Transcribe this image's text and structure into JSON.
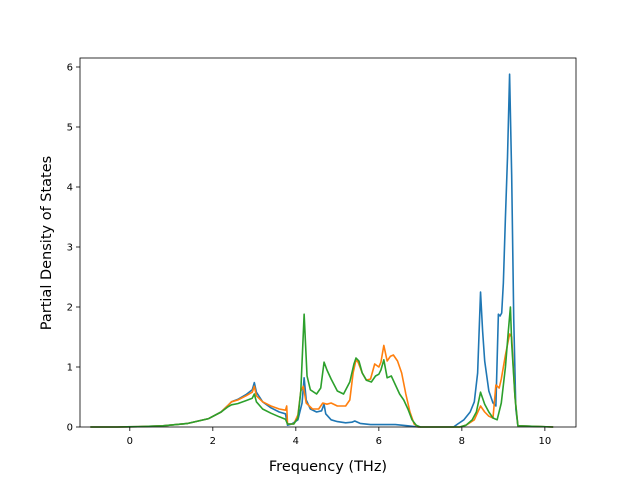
{
  "chart_data": {
    "type": "line",
    "title": "",
    "xlabel": "Frequency (THz)",
    "ylabel": "Partial Density of States",
    "xlim": [
      -1.2,
      10.75
    ],
    "ylim": [
      0,
      6.15
    ],
    "xticks": [
      0,
      2,
      4,
      6,
      8,
      10
    ],
    "yticks": [
      0,
      1,
      2,
      3,
      4,
      5,
      6
    ],
    "grid": false,
    "legend": "none",
    "series": [
      {
        "color": "#1f77b4",
        "points": [
          [
            -0.95,
            0
          ],
          [
            -0.3,
            0
          ],
          [
            0.2,
            0.005
          ],
          [
            0.8,
            0.02
          ],
          [
            1.4,
            0.06
          ],
          [
            1.9,
            0.14
          ],
          [
            2.2,
            0.25
          ],
          [
            2.35,
            0.35
          ],
          [
            2.45,
            0.42
          ],
          [
            2.6,
            0.46
          ],
          [
            2.8,
            0.54
          ],
          [
            2.95,
            0.62
          ],
          [
            3.0,
            0.74
          ],
          [
            3.05,
            0.58
          ],
          [
            3.2,
            0.42
          ],
          [
            3.4,
            0.32
          ],
          [
            3.6,
            0.25
          ],
          [
            3.75,
            0.22
          ],
          [
            3.8,
            0.03
          ],
          [
            3.9,
            0.05
          ],
          [
            4.05,
            0.12
          ],
          [
            4.15,
            0.4
          ],
          [
            4.2,
            0.82
          ],
          [
            4.25,
            0.45
          ],
          [
            4.35,
            0.3
          ],
          [
            4.5,
            0.25
          ],
          [
            4.62,
            0.27
          ],
          [
            4.68,
            0.38
          ],
          [
            4.72,
            0.22
          ],
          [
            4.85,
            0.12
          ],
          [
            5.0,
            0.09
          ],
          [
            5.2,
            0.07
          ],
          [
            5.35,
            0.08
          ],
          [
            5.42,
            0.1
          ],
          [
            5.55,
            0.06
          ],
          [
            5.8,
            0.04
          ],
          [
            6.1,
            0.04
          ],
          [
            6.4,
            0.04
          ],
          [
            6.7,
            0.02
          ],
          [
            6.95,
            0
          ],
          [
            7.8,
            0
          ],
          [
            7.9,
            0.05
          ],
          [
            8.05,
            0.12
          ],
          [
            8.2,
            0.25
          ],
          [
            8.3,
            0.42
          ],
          [
            8.38,
            0.9
          ],
          [
            8.45,
            2.25
          ],
          [
            8.5,
            1.6
          ],
          [
            8.55,
            1.1
          ],
          [
            8.65,
            0.6
          ],
          [
            8.75,
            0.4
          ],
          [
            8.82,
            0.35
          ],
          [
            8.88,
            1.88
          ],
          [
            8.92,
            1.85
          ],
          [
            8.96,
            1.9
          ],
          [
            9.0,
            2.4
          ],
          [
            9.05,
            3.5
          ],
          [
            9.1,
            4.5
          ],
          [
            9.15,
            5.88
          ],
          [
            9.2,
            4.2
          ],
          [
            9.25,
            1.8
          ],
          [
            9.3,
            0.3
          ],
          [
            9.35,
            0.02
          ],
          [
            10.2,
            0
          ]
        ]
      },
      {
        "color": "#ff7f0e",
        "points": [
          [
            -0.95,
            0
          ],
          [
            -0.3,
            0
          ],
          [
            0.2,
            0.005
          ],
          [
            0.8,
            0.02
          ],
          [
            1.4,
            0.06
          ],
          [
            1.9,
            0.14
          ],
          [
            2.2,
            0.25
          ],
          [
            2.35,
            0.35
          ],
          [
            2.45,
            0.42
          ],
          [
            2.6,
            0.45
          ],
          [
            2.8,
            0.52
          ],
          [
            2.95,
            0.58
          ],
          [
            3.0,
            0.68
          ],
          [
            3.05,
            0.52
          ],
          [
            3.2,
            0.42
          ],
          [
            3.4,
            0.35
          ],
          [
            3.6,
            0.3
          ],
          [
            3.75,
            0.28
          ],
          [
            3.78,
            0.35
          ],
          [
            3.8,
            0.05
          ],
          [
            3.95,
            0.05
          ],
          [
            4.05,
            0.2
          ],
          [
            4.12,
            0.6
          ],
          [
            4.18,
            0.68
          ],
          [
            4.25,
            0.4
          ],
          [
            4.4,
            0.3
          ],
          [
            4.55,
            0.3
          ],
          [
            4.65,
            0.4
          ],
          [
            4.75,
            0.38
          ],
          [
            4.85,
            0.4
          ],
          [
            5.0,
            0.35
          ],
          [
            5.2,
            0.35
          ],
          [
            5.3,
            0.45
          ],
          [
            5.38,
            0.9
          ],
          [
            5.45,
            1.12
          ],
          [
            5.5,
            1.08
          ],
          [
            5.6,
            0.9
          ],
          [
            5.7,
            0.78
          ],
          [
            5.8,
            0.8
          ],
          [
            5.9,
            1.05
          ],
          [
            6.0,
            1.0
          ],
          [
            6.05,
            1.08
          ],
          [
            6.12,
            1.36
          ],
          [
            6.2,
            1.1
          ],
          [
            6.28,
            1.18
          ],
          [
            6.35,
            1.2
          ],
          [
            6.45,
            1.1
          ],
          [
            6.55,
            0.9
          ],
          [
            6.65,
            0.55
          ],
          [
            6.75,
            0.25
          ],
          [
            6.85,
            0.05
          ],
          [
            6.95,
            0
          ],
          [
            7.95,
            0
          ],
          [
            8.1,
            0.03
          ],
          [
            8.3,
            0.12
          ],
          [
            8.45,
            0.35
          ],
          [
            8.55,
            0.25
          ],
          [
            8.65,
            0.18
          ],
          [
            8.75,
            0.15
          ],
          [
            8.82,
            0.7
          ],
          [
            8.9,
            0.65
          ],
          [
            8.95,
            0.8
          ],
          [
            9.05,
            1.2
          ],
          [
            9.15,
            1.55
          ],
          [
            9.2,
            1.5
          ],
          [
            9.28,
            0.5
          ],
          [
            9.35,
            0.02
          ],
          [
            10.2,
            0
          ]
        ]
      },
      {
        "color": "#2ca02c",
        "points": [
          [
            -0.95,
            0
          ],
          [
            -0.3,
            0
          ],
          [
            0.2,
            0.005
          ],
          [
            0.8,
            0.02
          ],
          [
            1.4,
            0.06
          ],
          [
            1.9,
            0.14
          ],
          [
            2.2,
            0.25
          ],
          [
            2.35,
            0.33
          ],
          [
            2.45,
            0.37
          ],
          [
            2.6,
            0.39
          ],
          [
            2.8,
            0.44
          ],
          [
            2.95,
            0.48
          ],
          [
            3.0,
            0.55
          ],
          [
            3.05,
            0.42
          ],
          [
            3.2,
            0.3
          ],
          [
            3.4,
            0.23
          ],
          [
            3.6,
            0.17
          ],
          [
            3.75,
            0.13
          ],
          [
            3.8,
            0.05
          ],
          [
            3.95,
            0.05
          ],
          [
            4.05,
            0.15
          ],
          [
            4.12,
            0.6
          ],
          [
            4.2,
            1.88
          ],
          [
            4.27,
            0.85
          ],
          [
            4.35,
            0.62
          ],
          [
            4.5,
            0.55
          ],
          [
            4.6,
            0.65
          ],
          [
            4.68,
            1.08
          ],
          [
            4.75,
            0.95
          ],
          [
            4.85,
            0.8
          ],
          [
            5.0,
            0.6
          ],
          [
            5.15,
            0.55
          ],
          [
            5.3,
            0.75
          ],
          [
            5.4,
            1.05
          ],
          [
            5.45,
            1.15
          ],
          [
            5.52,
            1.1
          ],
          [
            5.6,
            0.9
          ],
          [
            5.7,
            0.78
          ],
          [
            5.82,
            0.75
          ],
          [
            5.92,
            0.85
          ],
          [
            6.0,
            0.88
          ],
          [
            6.05,
            0.95
          ],
          [
            6.12,
            1.12
          ],
          [
            6.2,
            0.82
          ],
          [
            6.3,
            0.85
          ],
          [
            6.4,
            0.7
          ],
          [
            6.5,
            0.55
          ],
          [
            6.6,
            0.45
          ],
          [
            6.7,
            0.3
          ],
          [
            6.8,
            0.12
          ],
          [
            6.9,
            0.03
          ],
          [
            7.0,
            0
          ],
          [
            7.95,
            0
          ],
          [
            8.1,
            0.03
          ],
          [
            8.25,
            0.12
          ],
          [
            8.35,
            0.25
          ],
          [
            8.45,
            0.58
          ],
          [
            8.55,
            0.38
          ],
          [
            8.65,
            0.25
          ],
          [
            8.75,
            0.15
          ],
          [
            8.85,
            0.12
          ],
          [
            8.95,
            0.4
          ],
          [
            9.05,
            1.0
          ],
          [
            9.12,
            1.6
          ],
          [
            9.17,
            2.0
          ],
          [
            9.2,
            1.4
          ],
          [
            9.28,
            0.5
          ],
          [
            9.35,
            0.02
          ],
          [
            10.2,
            0
          ]
        ]
      }
    ]
  }
}
